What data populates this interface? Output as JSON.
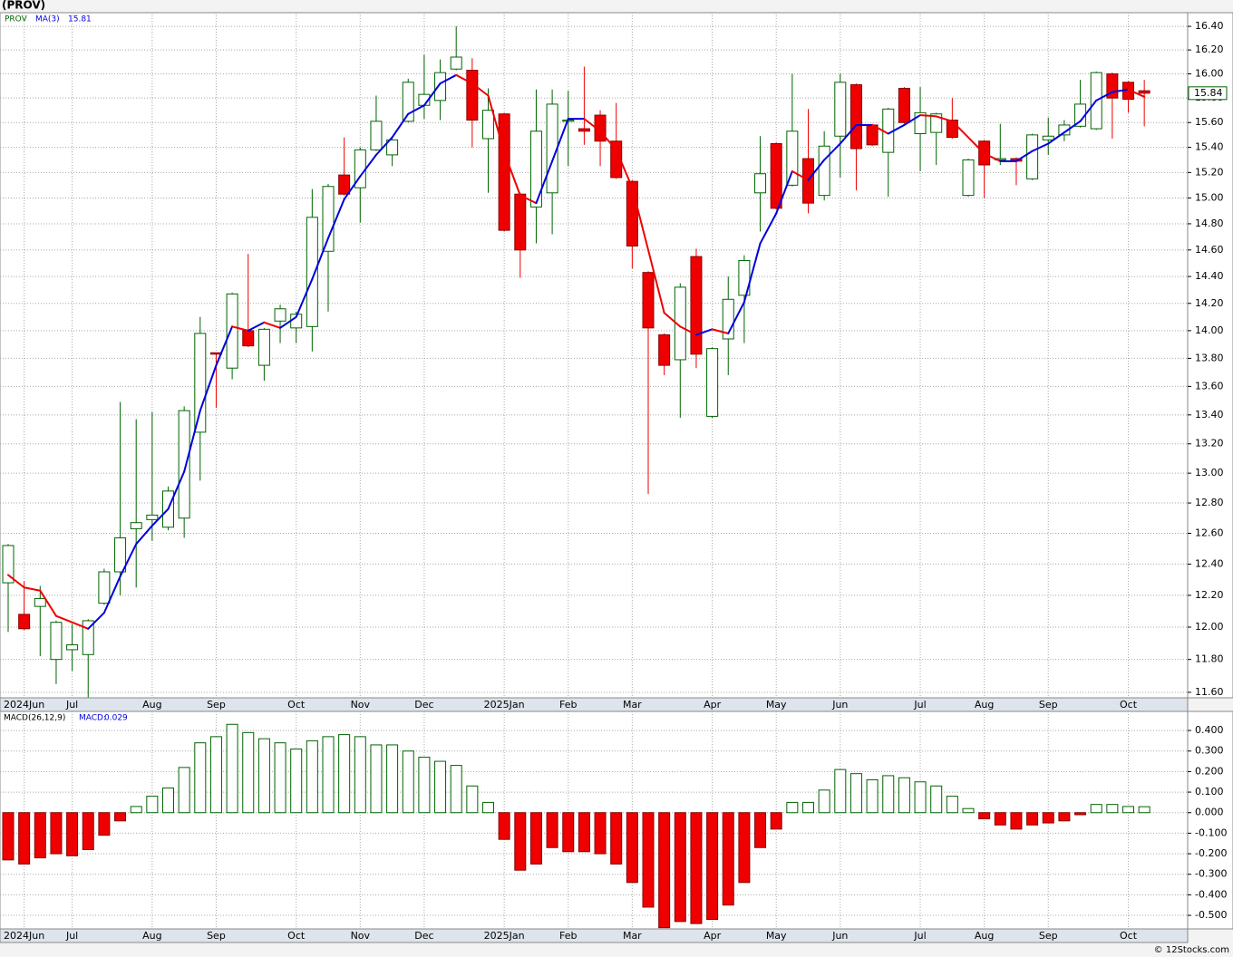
{
  "title": "(PROV)",
  "credit": "© 12Stocks.com",
  "chart_data": [
    {
      "type": "candlestick",
      "symbol": "PROV",
      "log_scale": true,
      "grid": true,
      "up_color": "#006400",
      "down_color": "#ee0000",
      "categories": [
        null,
        "2024Jun",
        null,
        null,
        "Jul",
        null,
        null,
        null,
        null,
        "Aug",
        null,
        null,
        null,
        "Sep",
        null,
        null,
        null,
        null,
        "Oct",
        null,
        null,
        null,
        "Nov",
        null,
        null,
        null,
        "Dec",
        null,
        null,
        null,
        null,
        "2025Jan",
        null,
        null,
        null,
        "Feb",
        null,
        null,
        null,
        "Mar",
        null,
        null,
        null,
        null,
        "Apr",
        null,
        null,
        null,
        "May",
        null,
        null,
        null,
        "Jun",
        null,
        null,
        null,
        null,
        "Jul",
        null,
        null,
        null,
        "Aug",
        null,
        null,
        null,
        "Sep",
        null,
        null,
        null,
        null,
        "Oct",
        null
      ],
      "open": [
        12.28,
        12.08,
        12.13,
        11.8,
        11.86,
        11.83,
        12.15,
        12.35,
        12.63,
        12.69,
        12.64,
        12.7,
        13.28,
        13.84,
        13.73,
        14.0,
        13.75,
        14.07,
        14.02,
        14.03,
        14.59,
        15.18,
        15.08,
        15.38,
        15.34,
        15.61,
        15.74,
        15.78,
        16.04,
        16.03,
        15.47,
        15.67,
        15.03,
        14.93,
        15.04,
        15.61,
        15.55,
        15.66,
        15.45,
        15.13,
        14.43,
        13.97,
        13.79,
        14.55,
        13.39,
        13.94,
        14.26,
        15.04,
        15.43,
        15.1,
        15.31,
        15.02,
        15.49,
        15.91,
        15.58,
        15.36,
        15.88,
        15.51,
        15.52,
        15.62,
        15.02,
        15.45,
        15.3,
        15.31,
        15.15,
        15.46,
        15.5,
        15.57,
        15.55,
        16.0,
        15.93,
        15.86
      ],
      "high": [
        12.53,
        12.29,
        12.26,
        12.04,
        12.02,
        12.05,
        12.37,
        13.49,
        13.37,
        13.42,
        12.91,
        13.46,
        14.1,
        13.84,
        14.28,
        14.57,
        14.02,
        14.19,
        14.14,
        15.07,
        15.11,
        15.48,
        15.4,
        15.82,
        15.47,
        15.96,
        16.16,
        16.12,
        16.4,
        16.13,
        15.88,
        15.68,
        15.04,
        15.87,
        15.87,
        15.86,
        16.06,
        15.7,
        15.76,
        15.14,
        14.44,
        13.98,
        14.35,
        14.61,
        13.88,
        14.4,
        14.56,
        15.49,
        15.44,
        16.0,
        15.71,
        15.53,
        16.0,
        15.92,
        15.59,
        15.72,
        15.89,
        15.89,
        15.68,
        15.8,
        15.31,
        15.46,
        15.59,
        15.32,
        15.51,
        15.64,
        15.62,
        15.95,
        16.02,
        16.01,
        15.94,
        15.95
      ],
      "low": [
        11.97,
        11.98,
        11.82,
        11.65,
        11.73,
        11.57,
        12.14,
        12.2,
        12.25,
        12.55,
        12.62,
        12.57,
        12.95,
        13.45,
        13.65,
        13.88,
        13.64,
        13.91,
        13.91,
        13.85,
        14.14,
        15.02,
        14.81,
        15.37,
        15.25,
        15.6,
        15.63,
        15.62,
        16.03,
        15.4,
        15.04,
        14.74,
        14.39,
        14.65,
        14.72,
        15.25,
        15.42,
        15.25,
        15.15,
        14.46,
        12.86,
        13.68,
        13.38,
        13.73,
        13.38,
        13.68,
        13.91,
        14.74,
        14.91,
        15.09,
        14.88,
        14.98,
        15.16,
        15.06,
        15.41,
        15.01,
        15.59,
        15.21,
        15.26,
        15.47,
        15.01,
        15.0,
        15.26,
        15.1,
        15.14,
        15.34,
        15.45,
        15.56,
        15.54,
        15.47,
        15.68,
        15.57
      ],
      "close": [
        12.52,
        11.99,
        12.18,
        12.03,
        11.89,
        12.04,
        12.35,
        12.57,
        12.67,
        12.72,
        12.88,
        13.43,
        13.98,
        13.83,
        14.27,
        13.89,
        14.01,
        14.16,
        14.12,
        14.85,
        15.09,
        15.03,
        15.38,
        15.61,
        15.46,
        15.93,
        15.83,
        16.01,
        16.14,
        15.62,
        15.7,
        14.75,
        14.6,
        15.53,
        15.75,
        15.62,
        15.53,
        15.45,
        15.16,
        14.63,
        14.02,
        13.75,
        14.32,
        13.83,
        13.87,
        14.23,
        14.52,
        15.19,
        14.92,
        15.53,
        14.96,
        15.41,
        15.93,
        15.39,
        15.42,
        15.71,
        15.6,
        15.68,
        15.67,
        15.48,
        15.3,
        15.26,
        15.31,
        15.29,
        15.5,
        15.49,
        15.58,
        15.75,
        16.01,
        15.8,
        15.79,
        15.84
      ],
      "ma": {
        "name": "MA(3)",
        "rise_color": "#0000dd",
        "fall_color": "#ee0000",
        "values": [
          12.33,
          12.25,
          12.23,
          12.07,
          12.03,
          11.99,
          12.09,
          12.32,
          12.53,
          12.65,
          12.76,
          13.01,
          13.43,
          13.75,
          14.03,
          14.0,
          14.06,
          14.02,
          14.1,
          14.38,
          14.69,
          14.99,
          15.17,
          15.34,
          15.48,
          15.67,
          15.74,
          15.92,
          15.99,
          15.92,
          15.82,
          15.36,
          15.02,
          14.96,
          15.29,
          15.63,
          15.63,
          15.53,
          15.38,
          15.08,
          14.6,
          14.13,
          14.03,
          13.97,
          14.01,
          13.98,
          14.21,
          14.65,
          14.88,
          15.21,
          15.14,
          15.3,
          15.43,
          15.58,
          15.58,
          15.51,
          15.58,
          15.66,
          15.65,
          15.61,
          15.48,
          15.35,
          15.29,
          15.29,
          15.37,
          15.43,
          15.52,
          15.61,
          15.78,
          15.85,
          15.87,
          15.81
        ]
      },
      "ylim": [
        11.567,
        16.517
      ],
      "yticks": [
        {
          "value": 16.4,
          "label": "16.40"
        },
        {
          "value": 16.2,
          "label": "16.20"
        },
        {
          "value": 16.0,
          "label": "16.00"
        },
        {
          "value": 15.8,
          "label": "15.80"
        },
        {
          "value": 15.6,
          "label": "15.60"
        },
        {
          "value": 15.4,
          "label": "15.40"
        },
        {
          "value": 15.2,
          "label": "15.20"
        },
        {
          "value": 15.0,
          "label": "15.00"
        },
        {
          "value": 14.8,
          "label": "14.80"
        },
        {
          "value": 14.6,
          "label": "14.60"
        },
        {
          "value": 14.4,
          "label": "14.40"
        },
        {
          "value": 14.2,
          "label": "14.20"
        },
        {
          "value": 14.0,
          "label": "14.00"
        },
        {
          "value": 13.8,
          "label": "13.80"
        },
        {
          "value": 13.6,
          "label": "13.60"
        },
        {
          "value": 13.4,
          "label": "13.40"
        },
        {
          "value": 13.2,
          "label": "13.20"
        },
        {
          "value": 13.0,
          "label": "13.00"
        },
        {
          "value": 12.8,
          "label": "12.80"
        },
        {
          "value": 12.6,
          "label": "12.60"
        },
        {
          "value": 12.4,
          "label": "12.40"
        },
        {
          "value": 12.2,
          "label": "12.20"
        },
        {
          "value": 12.0,
          "label": "12.00"
        },
        {
          "value": 11.8,
          "label": "11.80"
        },
        {
          "value": 11.6,
          "label": "11.60"
        }
      ]
    },
    {
      "type": "bar",
      "title": "MACD(26,12,9)",
      "value_prefix": "MACD:",
      "grid": true,
      "up_color": "#006400",
      "down_color": "#ee0000",
      "categories": [
        null,
        "2024Jun",
        null,
        null,
        "Jul",
        null,
        null,
        null,
        null,
        "Aug",
        null,
        null,
        null,
        "Sep",
        null,
        null,
        null,
        null,
        "Oct",
        null,
        null,
        null,
        "Nov",
        null,
        null,
        null,
        "Dec",
        null,
        null,
        null,
        null,
        "2025Jan",
        null,
        null,
        null,
        "Feb",
        null,
        null,
        null,
        "Mar",
        null,
        null,
        null,
        null,
        "Apr",
        null,
        null,
        null,
        "May",
        null,
        null,
        null,
        "Jun",
        null,
        null,
        null,
        null,
        "Jul",
        null,
        null,
        null,
        "Aug",
        null,
        null,
        null,
        "Sep",
        null,
        null,
        null,
        null,
        "Oct",
        null
      ],
      "values": [
        -0.23,
        -0.25,
        -0.22,
        -0.2,
        -0.21,
        -0.18,
        -0.11,
        -0.04,
        0.03,
        0.08,
        0.12,
        0.22,
        0.34,
        0.37,
        0.43,
        0.39,
        0.36,
        0.34,
        0.31,
        0.35,
        0.37,
        0.38,
        0.37,
        0.33,
        0.33,
        0.3,
        0.27,
        0.25,
        0.23,
        0.13,
        0.05,
        -0.13,
        -0.28,
        -0.25,
        -0.17,
        -0.19,
        -0.19,
        -0.2,
        -0.25,
        -0.34,
        -0.46,
        -0.56,
        -0.53,
        -0.54,
        -0.52,
        -0.45,
        -0.34,
        -0.17,
        -0.08,
        0.05,
        0.05,
        0.11,
        0.21,
        0.19,
        0.16,
        0.18,
        0.17,
        0.15,
        0.13,
        0.08,
        0.02,
        -0.03,
        -0.06,
        -0.08,
        -0.06,
        -0.05,
        -0.04,
        -0.01,
        0.04,
        0.04,
        0.03,
        0.029
      ],
      "ylim": [
        -0.566,
        0.493
      ],
      "yticks": [
        {
          "value": 0.4,
          "label": "0.400"
        },
        {
          "value": 0.3,
          "label": "0.300"
        },
        {
          "value": 0.2,
          "label": "0.200"
        },
        {
          "value": 0.1,
          "label": "0.100"
        },
        {
          "value": 0,
          "label": "0.000"
        },
        {
          "value": -0.1,
          "label": "-0.100"
        },
        {
          "value": -0.2,
          "label": "-0.200"
        },
        {
          "value": -0.3,
          "label": "-0.300"
        },
        {
          "value": -0.4,
          "label": "-0.400"
        },
        {
          "value": -0.5,
          "label": "-0.500"
        }
      ]
    }
  ]
}
